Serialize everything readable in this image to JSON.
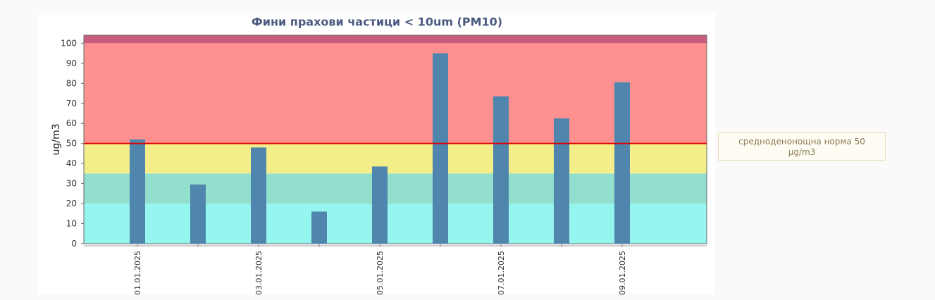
{
  "chart_data": {
    "type": "bar",
    "title": "Фини прахови частици < 10um (PM10)",
    "y_label": "ug/m3",
    "categories": [
      "01.01.2025",
      null,
      "03.01.2025",
      null,
      "05.01.2025",
      null,
      "07.01.2025",
      null,
      "09.01.2025"
    ],
    "values": [
      52,
      29.5,
      48,
      16,
      38.5,
      95,
      73.5,
      62.5,
      80.5
    ],
    "color": "#5086ad",
    "ylim": [
      0,
      104
    ],
    "yticks": [
      0,
      10,
      20,
      30,
      40,
      50,
      60,
      70,
      80,
      90,
      100
    ],
    "bands": [
      {
        "from": 0,
        "to": 20,
        "color": "#95f5ef"
      },
      {
        "from": 20,
        "to": 35,
        "color": "#91dfcc"
      },
      {
        "from": 35,
        "to": 50,
        "color": "#f3ee8a"
      },
      {
        "from": 50,
        "to": 100,
        "color": "#ff9090"
      },
      {
        "from": 100,
        "to": 104,
        "color": "#c85c7c"
      }
    ],
    "threshold": {
      "value": 50,
      "color": "#e00000",
      "label": "средноденонощна норма 50 µg/m3"
    }
  }
}
